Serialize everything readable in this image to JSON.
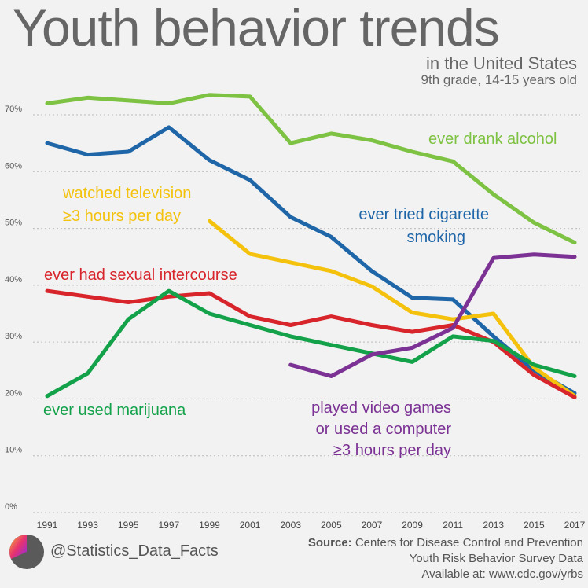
{
  "header": {
    "title": "Youth behavior trends",
    "subtitle": "in the United States",
    "subtitle2": "9th grade, 14-15 years old"
  },
  "footer": {
    "handle": "@Statistics_Data_Facts",
    "source_label": "Source:",
    "source_text": "Centers for Disease Control and Prevention",
    "source_line2": "Youth Risk Behavior Survey Data",
    "source_line3": "Available at: www.cdc.gov/yrbs",
    "logo_icon": "pie-logo-icon"
  },
  "chart_data": {
    "type": "line",
    "x": [
      1991,
      1993,
      1995,
      1997,
      1999,
      2001,
      2003,
      2005,
      2007,
      2009,
      2011,
      2013,
      2015,
      2017
    ],
    "ylim": [
      0,
      70
    ],
    "yticks": [
      0,
      10,
      20,
      30,
      40,
      50,
      60,
      70
    ],
    "ytick_labels": [
      "0%",
      "10%",
      "20%",
      "30%",
      "40%",
      "50%",
      "60%",
      "70%"
    ],
    "grid": true,
    "series": [
      {
        "name": "ever drank alcohol",
        "color": "#7dc242",
        "values": [
          72,
          73,
          72.5,
          72,
          73.5,
          73.2,
          65,
          66.7,
          65.5,
          63.5,
          61.8,
          56,
          51,
          47.5
        ]
      },
      {
        "name": "ever tried cigarette smoking",
        "color": "#1f66a8",
        "values": [
          65,
          63,
          63.5,
          67.8,
          62,
          58.5,
          52,
          48.5,
          42.5,
          37.8,
          37.5,
          31,
          25,
          21
        ]
      },
      {
        "name": "watched television ≥3 hours per day",
        "color": "#f4c20d",
        "values": [
          null,
          null,
          null,
          null,
          51.3,
          45.5,
          44,
          42.5,
          39.8,
          35.2,
          34,
          35,
          25.5,
          20.5
        ]
      },
      {
        "name": "ever had sexual intercourse",
        "color": "#d8252b",
        "values": [
          39,
          38,
          37,
          38,
          38.6,
          34.5,
          33,
          34.5,
          33,
          31.8,
          33,
          30,
          24.2,
          20.3
        ]
      },
      {
        "name": "ever used marijuana",
        "color": "#13a24a",
        "values": [
          20.5,
          24.5,
          34,
          39,
          35,
          33,
          31,
          29.5,
          28,
          26.5,
          31,
          30.2,
          26,
          24
        ]
      },
      {
        "name": "played video games or used a computer ≥3 hours per day",
        "color": "#7b3294",
        "values": [
          null,
          null,
          null,
          null,
          null,
          null,
          26,
          24,
          27.8,
          29,
          32.5,
          44.8,
          45.4,
          45
        ]
      }
    ],
    "labels": {
      "alcohol": "ever drank alcohol",
      "cig_1": "ever tried cigarette",
      "cig_2": "smoking",
      "tv_1": "watched television",
      "tv_2": "≥3 hours per day",
      "sex": "ever had sexual intercourse",
      "mj": "ever used marijuana",
      "vg_1": "played video games",
      "vg_2": "or used a computer",
      "vg_3": "≥3 hours per day"
    }
  }
}
